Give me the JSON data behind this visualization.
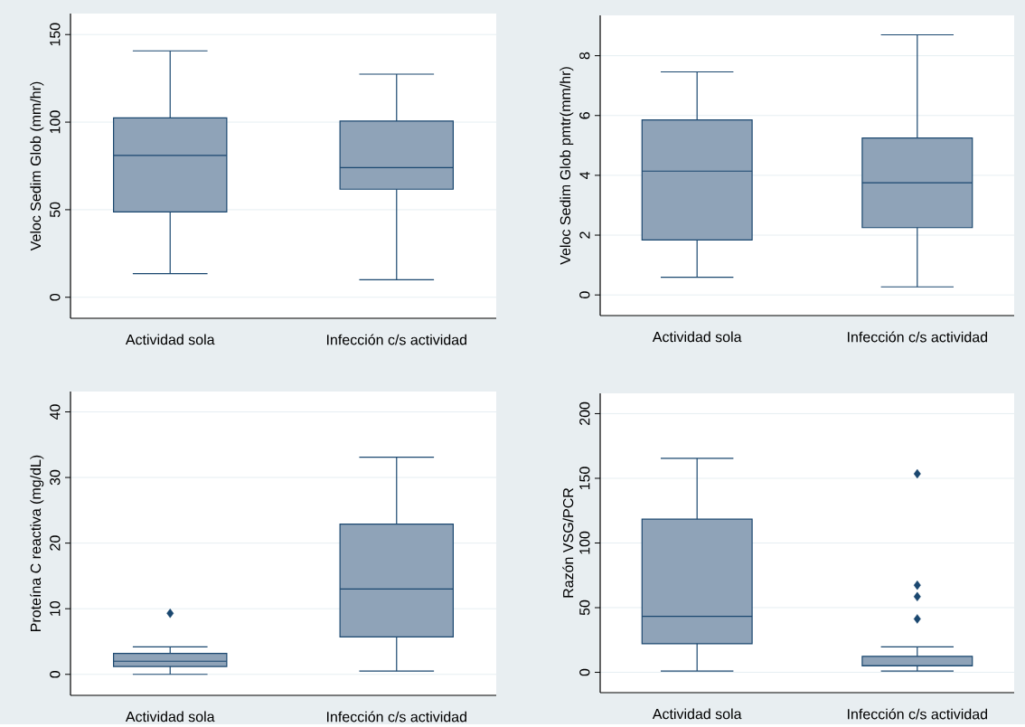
{
  "chart_data": [
    {
      "type": "box",
      "categories": [
        "Actividad sola",
        "Infección c/s actividad"
      ],
      "ylabel": "Veloc Sedim Glob (mm/hr)",
      "ylim": [
        -12,
        162
      ],
      "yticks": [
        0,
        50,
        100,
        150
      ],
      "grid": "y",
      "color": "#8fa3b8",
      "marker": "diamond",
      "boxes": [
        {
          "low": 13.5,
          "q1": 48.7,
          "median": 81,
          "q3": 102.4,
          "high": 140.7
        },
        {
          "low": 10,
          "q1": 61.7,
          "median": 74,
          "q3": 100.6,
          "high": 127.4
        }
      ]
    },
    {
      "type": "box",
      "categories": [
        "Actividad sola",
        "Infección c/s actividad"
      ],
      "ylabel": "Veloc Sedim Glob pmtr(mm/hr)",
      "ylim": [
        -0.69,
        9.35
      ],
      "yticks": [
        0,
        2,
        4,
        6,
        8
      ],
      "grid": "y",
      "color": "#8fa3b8",
      "marker": "diamond",
      "boxes": [
        {
          "low": 0.59,
          "q1": 1.84,
          "median": 4.14,
          "q3": 5.85,
          "high": 7.46
        },
        {
          "low": 0.27,
          "q1": 2.25,
          "median": 3.75,
          "q3": 5.25,
          "high": 8.7
        }
      ]
    },
    {
      "type": "box",
      "categories": [
        "Actividad sola",
        "Infección c/s actividad"
      ],
      "ylabel": "Proteína C reactiva (mg/dL)",
      "ylim": [
        -3.2,
        43.1
      ],
      "yticks": [
        0,
        10,
        20,
        30,
        40
      ],
      "grid": "y",
      "color": "#8fa3b8",
      "marker": "diamond",
      "boxes": [
        {
          "low": 0,
          "q1": 1.2,
          "median": 2.0,
          "q3": 3.2,
          "high": 4.2,
          "outliers": [
            9.3
          ]
        },
        {
          "low": 0.5,
          "q1": 5.7,
          "median": 13.0,
          "q3": 22.9,
          "high": 33.1
        }
      ]
    },
    {
      "type": "box",
      "categories": [
        "Actividad sola",
        "Infección c/s actividad"
      ],
      "ylabel": "Razón VSG/PCR",
      "ylim": [
        -15.7,
        215.7
      ],
      "yticks": [
        0,
        50,
        100,
        150,
        200
      ],
      "grid": "y",
      "color": "#8fa3b8",
      "marker": "diamond",
      "boxes": [
        {
          "low": 1,
          "q1": 22.1,
          "median": 43.3,
          "q3": 118.4,
          "high": 165.4
        },
        {
          "low": 1,
          "q1": 5,
          "median": 5,
          "q3": 12.4,
          "high": 19.7,
          "outliers": [
            153.5,
            67.4,
            58.5,
            41.3
          ]
        }
      ]
    }
  ]
}
